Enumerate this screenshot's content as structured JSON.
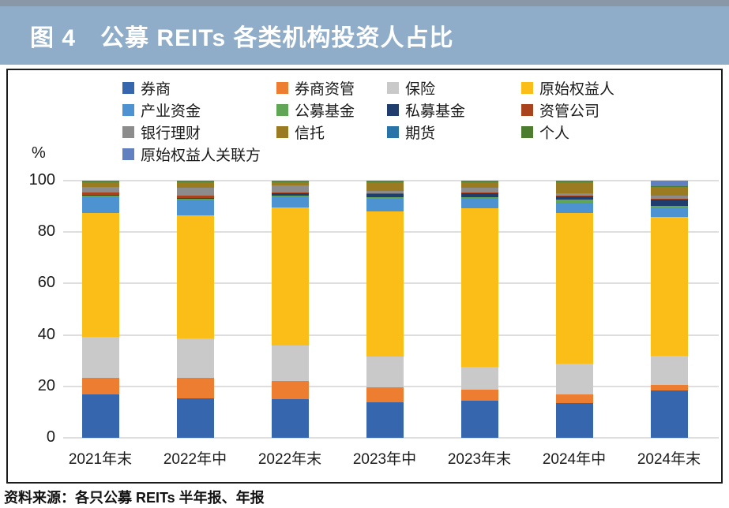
{
  "header": {
    "title": "图 4　公募 REITs 各类机构投资人占比",
    "background": "#8FADC8",
    "text_color": "#FFFFFF"
  },
  "footer": {
    "source": "资料来源：各只公募 REITs 半年报、年报"
  },
  "chart_data": {
    "type": "bar",
    "stacked": true,
    "title": "公募 REITs 各类机构投资人占比",
    "unit_label": "%",
    "xlabel": "",
    "ylabel": "%",
    "ylim": [
      0,
      100
    ],
    "yticks": [
      0,
      20,
      40,
      60,
      80,
      100
    ],
    "grid": true,
    "legend_position": "top",
    "categories": [
      "2021年末",
      "2022年中",
      "2022年末",
      "2023年中",
      "2023年末",
      "2024年中",
      "2024年末"
    ],
    "series": [
      {
        "name": "券商",
        "color": "#3566AE",
        "values": [
          16.8,
          15.2,
          14.9,
          13.8,
          14.5,
          13.4,
          18.3
        ]
      },
      {
        "name": "券商资管",
        "color": "#ED7D31",
        "values": [
          6.4,
          8.0,
          7.3,
          5.9,
          4.1,
          3.5,
          2.3
        ]
      },
      {
        "name": "保险",
        "color": "#C9C9C9",
        "values": [
          16.2,
          15.5,
          13.8,
          11.9,
          9.0,
          11.8,
          11.3
        ]
      },
      {
        "name": "原始权益人",
        "color": "#FBBE18",
        "values": [
          47.9,
          47.8,
          53.5,
          56.4,
          61.7,
          58.6,
          54.0
        ]
      },
      {
        "name": "产业资金",
        "color": "#4E93D1",
        "values": [
          6.5,
          6.4,
          4.4,
          5.0,
          4.0,
          4.2,
          3.4
        ]
      },
      {
        "name": "公募基金",
        "color": "#61A656",
        "values": [
          0.3,
          0.2,
          0.3,
          0.5,
          0.3,
          1.1,
          1.0
        ]
      },
      {
        "name": "私募基金",
        "color": "#1F3E6E",
        "values": [
          0.4,
          0.3,
          0.8,
          1.3,
          1.4,
          1.4,
          2.6
        ]
      },
      {
        "name": "资管公司",
        "color": "#A8431D",
        "values": [
          0.8,
          0.8,
          0.3,
          0.3,
          0.4,
          0.2,
          0.2
        ]
      },
      {
        "name": "银行理财",
        "color": "#8C8C8C",
        "values": [
          2.2,
          3.0,
          3.0,
          0.9,
          1.8,
          0.8,
          1.0
        ]
      },
      {
        "name": "信托",
        "color": "#9A7B21",
        "values": [
          1.9,
          2.2,
          1.2,
          3.5,
          2.3,
          4.5,
          3.3
        ]
      },
      {
        "name": "期货",
        "color": "#2874A8",
        "values": [
          0.2,
          0.2,
          0.2,
          0.2,
          0.2,
          0.2,
          0.4
        ]
      },
      {
        "name": "个人",
        "color": "#4C7D2E",
        "values": [
          0.2,
          0.2,
          0.1,
          0.1,
          0.1,
          0.1,
          0.2
        ]
      },
      {
        "name": "原始权益人关联方",
        "color": "#6080C0",
        "values": [
          0.2,
          0.2,
          0.2,
          0.2,
          0.2,
          0.2,
          2.0
        ]
      }
    ]
  }
}
